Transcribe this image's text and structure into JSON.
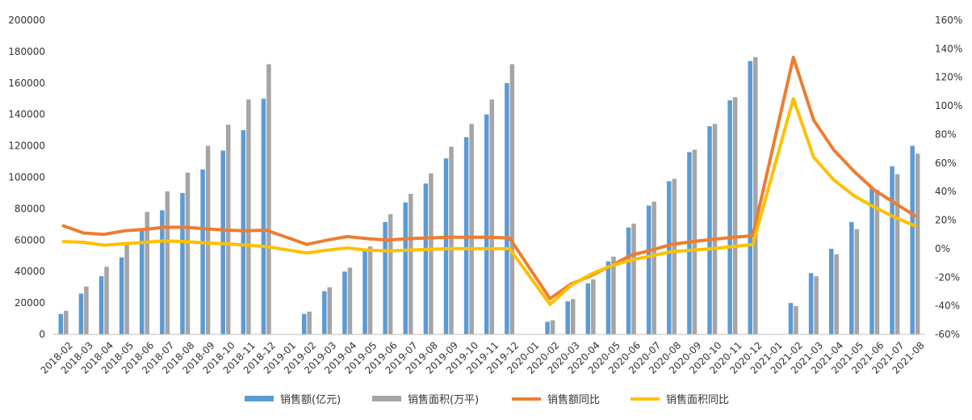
{
  "chart_data": {
    "type": "bar",
    "categories": [
      "2018-02",
      "2018-03",
      "2018-04",
      "2018-05",
      "2018-06",
      "2018-07",
      "2018-08",
      "2018-09",
      "2018-10",
      "2018-11",
      "2018-12",
      "2019-01",
      "2019-02",
      "2019-03",
      "2019-04",
      "2019-05",
      "2019-06",
      "2019-07",
      "2019-08",
      "2019-09",
      "2019-10",
      "2019-11",
      "2019-12",
      "2020-01",
      "2020-02",
      "2020-03",
      "2020-04",
      "2020-05",
      "2020-06",
      "2020-07",
      "2020-08",
      "2020-09",
      "2020-10",
      "2020-11",
      "2020-12",
      "2021-01",
      "2021-02",
      "2021-03",
      "2021-04",
      "2021-05",
      "2021-06",
      "2021-07",
      "2021-08"
    ],
    "series": [
      {
        "name": "销售额(亿元)",
        "type": "bar",
        "axis": "left",
        "color": "#5B9BD5",
        "values": [
          13000,
          26000,
          37000,
          49000,
          66000,
          79000,
          90000,
          105000,
          117000,
          130000,
          150000,
          null,
          13000,
          27500,
          40000,
          53000,
          71500,
          84000,
          96000,
          112000,
          125500,
          140000,
          160000,
          null,
          8000,
          21000,
          32500,
          46500,
          68000,
          82000,
          97500,
          116000,
          132500,
          149000,
          174000,
          null,
          20000,
          39000,
          54500,
          71500,
          93000,
          107000,
          120000
        ]
      },
      {
        "name": "销售面积(万平)",
        "type": "bar",
        "axis": "left",
        "color": "#A5A5A5",
        "values": [
          15000,
          30500,
          43000,
          57000,
          78000,
          91000,
          103000,
          120000,
          133500,
          149500,
          172000,
          null,
          14500,
          30000,
          42500,
          56000,
          76500,
          89500,
          102500,
          119500,
          134000,
          149500,
          172000,
          null,
          9000,
          22500,
          35000,
          49500,
          70500,
          84500,
          99000,
          117500,
          134000,
          151000,
          176500,
          null,
          18000,
          37000,
          51000,
          67000,
          92000,
          102000,
          115000
        ]
      },
      {
        "name": "销售额同比",
        "type": "line",
        "axis": "right",
        "color": "#ED7D31",
        "values": [
          16,
          11,
          10,
          12.5,
          13.5,
          15,
          15,
          14,
          13,
          12.5,
          13,
          null,
          3,
          6,
          8.5,
          7,
          6,
          7,
          7.5,
          8,
          8,
          8,
          7.5,
          null,
          -35,
          -25,
          -19,
          -12,
          -4.5,
          -1,
          3,
          5,
          6.5,
          8,
          9,
          null,
          134,
          90,
          69,
          54,
          41,
          32,
          23
        ]
      },
      {
        "name": "销售面积同比",
        "type": "line",
        "axis": "right",
        "color": "#FFC000",
        "values": [
          5,
          4.5,
          2.5,
          3.5,
          4.5,
          5.5,
          5,
          4,
          3.5,
          2.5,
          1.5,
          null,
          -3,
          -1,
          0.5,
          -1,
          -1.5,
          -1,
          -0.5,
          0,
          0,
          0,
          0,
          null,
          -39,
          -26,
          -18,
          -12,
          -8,
          -5,
          -2,
          -1,
          0,
          1.5,
          3,
          null,
          105,
          64,
          48,
          37,
          29,
          22,
          16
        ]
      }
    ],
    "y_left": {
      "min": 0,
      "max": 200000,
      "ticks": [
        "0",
        "20000",
        "40000",
        "60000",
        "80000",
        "100000",
        "120000",
        "140000",
        "160000",
        "180000",
        "200000"
      ]
    },
    "y_right": {
      "min": -60,
      "max": 160,
      "ticks": [
        "-60%",
        "-40%",
        "-20%",
        "0%",
        "20%",
        "40%",
        "60%",
        "80%",
        "100%",
        "120%",
        "140%",
        "160%"
      ]
    },
    "legend": {
      "placement": "bottom",
      "items": [
        "销售额(亿元)",
        "销售面积(万平)",
        "销售额同比",
        "销售面积同比"
      ]
    },
    "grid": false,
    "title": "",
    "xlabel": "",
    "ylabel": ""
  }
}
